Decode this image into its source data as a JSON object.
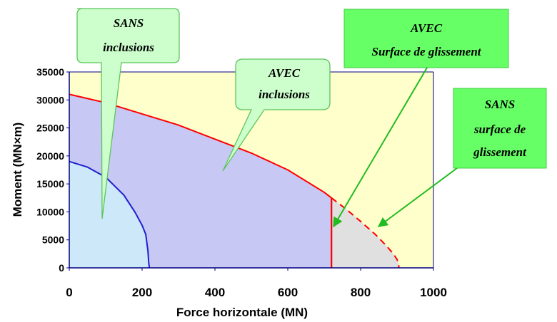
{
  "chart_data": {
    "type": "area",
    "xlabel": "Force horizontale  (MN)",
    "ylabel": "Moment  (MN×m)",
    "xlim": [
      0,
      1000
    ],
    "ylim": [
      0,
      35000
    ],
    "xticks": [
      "0",
      "200",
      "400",
      "600",
      "800",
      "1000"
    ],
    "yticks": [
      "0",
      "5000",
      "10000",
      "15000",
      "20000",
      "25000",
      "30000",
      "35000"
    ],
    "series": [
      {
        "label_lines": [
          "SANS",
          "inclusions"
        ],
        "color": "#1f1fd0",
        "fill": "#cde8f8",
        "x": [
          0,
          50,
          100,
          150,
          180,
          200,
          210,
          216,
          218,
          220
        ],
        "y": [
          19000,
          18000,
          16200,
          13000,
          10000,
          7600,
          6000,
          3000,
          1000,
          0
        ]
      },
      {
        "label_lines": [
          "AVEC",
          "inclusions"
        ],
        "color": "#ff0000",
        "fill": "#c8c8f5",
        "x": [
          0,
          100,
          200,
          300,
          400,
          500,
          600,
          700,
          720,
          720
        ],
        "y": [
          31000,
          29500,
          27500,
          25500,
          23000,
          20500,
          17500,
          13500,
          12500,
          0
        ]
      },
      {
        "label_lines": [
          "AVEC",
          "Surface de glissement"
        ],
        "color": "#ff0000",
        "x": [
          720,
          720
        ],
        "y": [
          12500,
          0
        ]
      },
      {
        "label_lines": [
          "SANS",
          "surface de",
          "glissement"
        ],
        "color": "#ff0000",
        "dashed": true,
        "fill": "#e0e0e0",
        "x": [
          720,
          760,
          800,
          840,
          870,
          890,
          900,
          905,
          905
        ],
        "y": [
          12500,
          10500,
          8300,
          6000,
          4000,
          2500,
          1500,
          500,
          0
        ]
      }
    ],
    "background": "#ffffcc"
  }
}
